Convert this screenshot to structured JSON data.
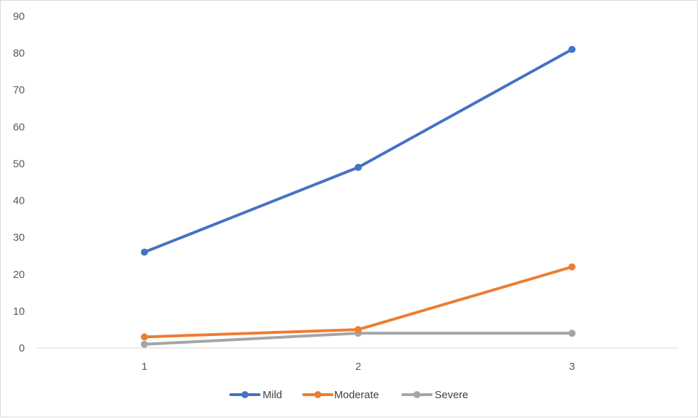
{
  "chart_data": {
    "type": "line",
    "title": "",
    "xlabel": "",
    "ylabel": "",
    "categories": [
      "1",
      "2",
      "3"
    ],
    "ylim": [
      0,
      90
    ],
    "yticks": [
      0,
      10,
      20,
      30,
      40,
      50,
      60,
      70,
      80,
      90
    ],
    "grid": false,
    "legend": "bottom",
    "series": [
      {
        "name": "Mild",
        "values": [
          26,
          49,
          81
        ],
        "color": "#4472c4"
      },
      {
        "name": "Moderate",
        "values": [
          3,
          5,
          22
        ],
        "color": "#ed7d31"
      },
      {
        "name": "Severe",
        "values": [
          1,
          4,
          4
        ],
        "color": "#a5a5a5"
      }
    ],
    "axis_color": "#d9d9d9"
  }
}
